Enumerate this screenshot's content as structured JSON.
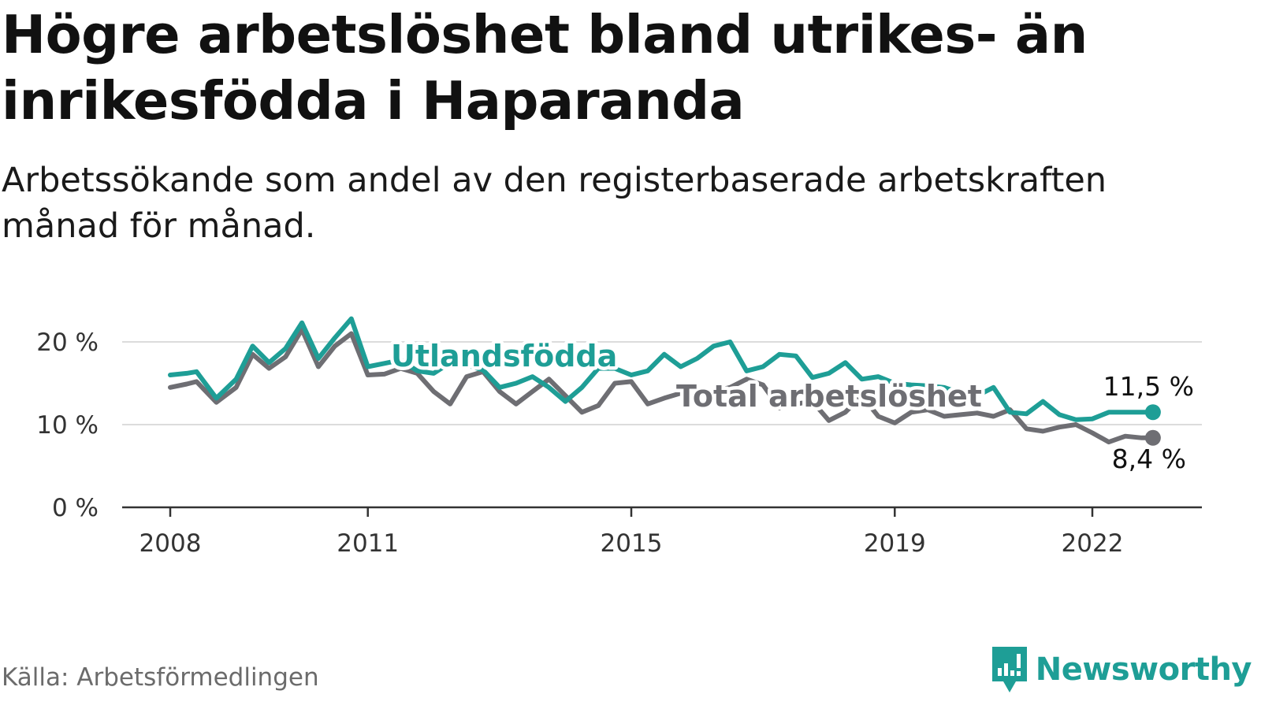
{
  "title": "Högre arbetslöshet bland utrikes- än inrikesfödda i Haparanda",
  "subtitle": "Arbetssökande som andel av den registerbaserade arbetskraften månad för månad.",
  "source": "Källa: Arbetsförmedlingen",
  "logo": {
    "name": "Newsworthy",
    "icon": "newsworthy-logo-icon",
    "color": "#1e9e96"
  },
  "chart_data": {
    "type": "line",
    "title": "Högre arbetslöshet bland utrikes- än inrikesfödda i Haparanda",
    "xlabel": "",
    "ylabel": "",
    "xlim": [
      2007.7,
      2023.9
    ],
    "ylim": [
      0,
      22
    ],
    "grid": true,
    "y_ticks": [
      0,
      10,
      20
    ],
    "y_tick_labels": [
      "0 %",
      "10 %",
      "20 %"
    ],
    "x_ticks": [
      2008,
      2011,
      2015,
      2019,
      2022
    ],
    "x_tick_labels": [
      "2008",
      "2011",
      "2015",
      "2019",
      "2022"
    ],
    "series": [
      {
        "name": "Total arbetslöshet",
        "label": "Total arbetslöshet",
        "color": "#6e6e73",
        "end_label": "8,4 %",
        "x": [
          2008.0,
          2008.25,
          2008.4,
          2008.7,
          2009.0,
          2009.25,
          2009.5,
          2009.75,
          2010.0,
          2010.25,
          2010.5,
          2010.75,
          2011.0,
          2011.25,
          2011.5,
          2011.75,
          2012.0,
          2012.25,
          2012.5,
          2012.75,
          2013.0,
          2013.25,
          2013.5,
          2013.75,
          2014.0,
          2014.25,
          2014.5,
          2014.75,
          2015.0,
          2015.25,
          2015.5,
          2015.75,
          2016.0,
          2016.25,
          2016.5,
          2016.75,
          2017.0,
          2017.25,
          2017.5,
          2017.75,
          2018.0,
          2018.25,
          2018.5,
          2018.75,
          2019.0,
          2019.25,
          2019.5,
          2019.75,
          2020.0,
          2020.25,
          2020.5,
          2020.75,
          2021.0,
          2021.25,
          2021.5,
          2021.75,
          2022.0,
          2022.25,
          2022.5,
          2022.75,
          2022.92
        ],
        "values": [
          14.5,
          14.9,
          15.2,
          12.7,
          14.5,
          18.5,
          16.8,
          18.2,
          21.5,
          17.0,
          19.5,
          21.0,
          16.0,
          16.1,
          16.8,
          16.2,
          14.0,
          12.5,
          15.8,
          16.4,
          14.0,
          12.5,
          14.0,
          15.5,
          13.5,
          11.5,
          12.3,
          15.0,
          15.2,
          12.5,
          13.2,
          13.8,
          13.2,
          14.0,
          14.5,
          15.5,
          14.8,
          12.0,
          12.5,
          12.8,
          10.5,
          11.5,
          13.5,
          11.0,
          10.2,
          11.5,
          11.8,
          11.0,
          11.2,
          11.4,
          11.0,
          11.8,
          9.5,
          9.2,
          9.7,
          10.0,
          9.0,
          7.9,
          8.6,
          8.4,
          8.4
        ]
      },
      {
        "name": "Utlandsfödda",
        "label": "Utlandsfödda",
        "color": "#1e9e96",
        "end_label": "11,5 %",
        "x": [
          2008.0,
          2008.25,
          2008.4,
          2008.7,
          2009.0,
          2009.25,
          2009.5,
          2009.75,
          2010.0,
          2010.25,
          2010.5,
          2010.75,
          2011.0,
          2011.25,
          2011.5,
          2011.75,
          2012.0,
          2012.25,
          2012.5,
          2012.75,
          2013.0,
          2013.25,
          2013.5,
          2013.75,
          2014.0,
          2014.25,
          2014.5,
          2014.75,
          2015.0,
          2015.25,
          2015.5,
          2015.75,
          2016.0,
          2016.25,
          2016.5,
          2016.75,
          2017.0,
          2017.25,
          2017.5,
          2017.75,
          2018.0,
          2018.25,
          2018.5,
          2018.75,
          2019.0,
          2019.25,
          2019.5,
          2019.75,
          2020.0,
          2020.25,
          2020.5,
          2020.75,
          2021.0,
          2021.25,
          2021.5,
          2021.75,
          2022.0,
          2022.25,
          2022.5,
          2022.75,
          2022.92
        ],
        "values": [
          16.0,
          16.2,
          16.4,
          13.2,
          15.5,
          19.5,
          17.5,
          19.2,
          22.3,
          18.0,
          20.5,
          22.8,
          17.0,
          17.4,
          17.8,
          16.5,
          16.2,
          17.5,
          17.2,
          16.6,
          14.5,
          15.0,
          15.8,
          14.5,
          12.8,
          14.5,
          16.8,
          16.8,
          16.0,
          16.5,
          18.5,
          17.0,
          18.0,
          19.5,
          20.0,
          16.5,
          17.0,
          18.5,
          18.3,
          15.7,
          16.2,
          17.5,
          15.5,
          15.8,
          15.0,
          14.8,
          14.7,
          14.5,
          13.8,
          13.5,
          14.5,
          11.5,
          11.3,
          12.8,
          11.2,
          10.6,
          10.7,
          11.5,
          11.5,
          11.5,
          11.5
        ]
      }
    ],
    "annotations": [
      {
        "text": "Utlandsfödda",
        "series": "Utlandsfödda"
      },
      {
        "text": "Total arbetslöshet",
        "series": "Total arbetslöshet"
      }
    ]
  }
}
